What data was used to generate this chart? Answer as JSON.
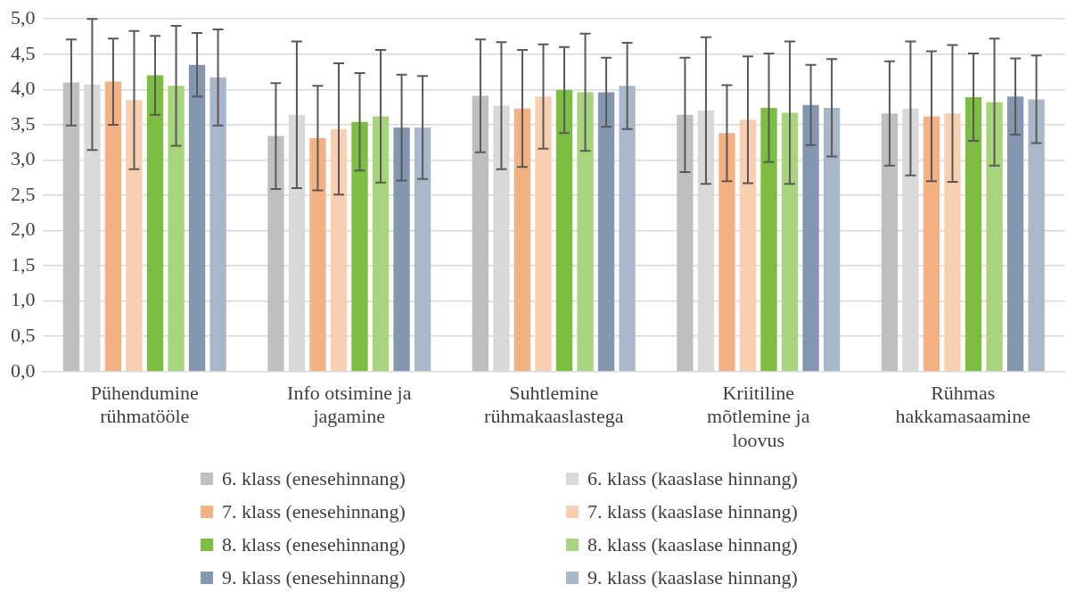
{
  "chart_data": {
    "type": "bar",
    "categories": [
      "Pühendumine rühmatööle",
      "Info otsimine ja jagamine",
      "Suhtlemine rühmakaaslastega",
      "Kriitiline mõtlemine ja loovus",
      "Rühmas hakkamasaamine"
    ],
    "series": [
      {
        "name": "6. klass (enesehinnang)",
        "color": "#bfbfbf",
        "values": [
          4.1,
          3.34,
          3.91,
          3.64,
          3.66
        ],
        "errors": [
          0.61,
          0.75,
          0.8,
          0.81,
          0.74
        ]
      },
      {
        "name": "6. klass (kaaslase hinnang)",
        "color": "#d9d9d9",
        "values": [
          4.07,
          3.64,
          3.77,
          3.7,
          3.73
        ],
        "errors": [
          0.93,
          1.04,
          0.9,
          1.04,
          0.95
        ]
      },
      {
        "name": "7. klass (enesehinnang)",
        "color": "#f4b183",
        "values": [
          4.11,
          3.31,
          3.73,
          3.38,
          3.62
        ],
        "errors": [
          0.61,
          0.74,
          0.83,
          0.68,
          0.92
        ]
      },
      {
        "name": "7. klass (kaaslase hinnang)",
        "color": "#f8cfb0",
        "values": [
          3.85,
          3.44,
          3.9,
          3.57,
          3.66
        ],
        "errors": [
          0.98,
          0.93,
          0.74,
          0.9,
          0.97
        ]
      },
      {
        "name": "8. klass (enesehinnang)",
        "color": "#7cbd42",
        "values": [
          4.2,
          3.54,
          3.99,
          3.74,
          3.89
        ],
        "errors": [
          0.56,
          0.69,
          0.61,
          0.77,
          0.62
        ]
      },
      {
        "name": "8. klass (kaaslase hinnang)",
        "color": "#a8d47e",
        "values": [
          4.05,
          3.62,
          3.96,
          3.67,
          3.82
        ],
        "errors": [
          0.85,
          0.94,
          0.83,
          1.01,
          0.9
        ]
      },
      {
        "name": "9. klass (enesehinnang)",
        "color": "#8497b0",
        "values": [
          4.35,
          3.46,
          3.96,
          3.78,
          3.9
        ],
        "errors": [
          0.45,
          0.75,
          0.49,
          0.57,
          0.54
        ]
      },
      {
        "name": "9. klass (kaaslase hinnang)",
        "color": "#a9b7ca",
        "values": [
          4.17,
          3.46,
          4.05,
          3.74,
          3.86
        ],
        "errors": [
          0.68,
          0.73,
          0.61,
          0.69,
          0.62
        ]
      }
    ],
    "ylim": [
      0,
      5
    ],
    "yticks": [
      {
        "value": 0,
        "label": "0,0"
      },
      {
        "value": 0.5,
        "label": "0,5"
      },
      {
        "value": 1,
        "label": "1,0"
      },
      {
        "value": 1.5,
        "label": "1,5"
      },
      {
        "value": 2,
        "label": "2,0"
      },
      {
        "value": 2.5,
        "label": "2,5"
      },
      {
        "value": 3,
        "label": "3,0"
      },
      {
        "value": 3.5,
        "label": "3,5"
      },
      {
        "value": 4,
        "label": "4,0"
      },
      {
        "value": 4.5,
        "label": "4,5"
      },
      {
        "value": 5,
        "label": "5,0"
      }
    ],
    "grid": "y",
    "legend": "bottom"
  }
}
